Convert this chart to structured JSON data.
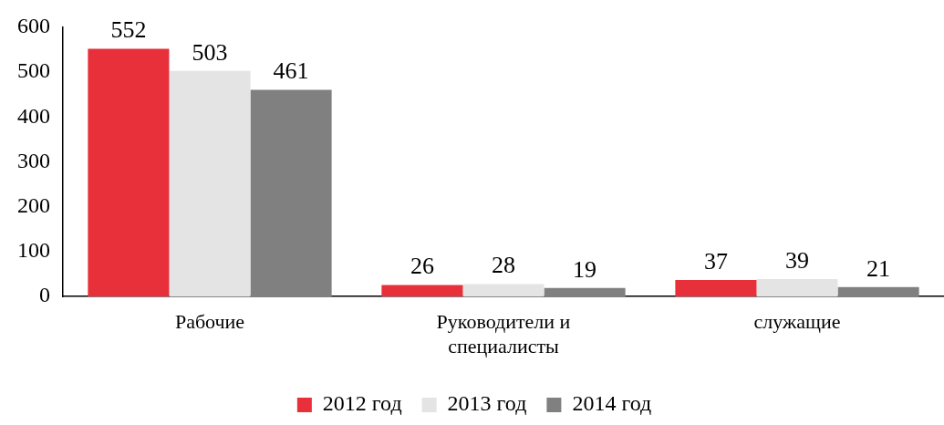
{
  "chart_data": {
    "type": "bar",
    "categories": [
      "Рабочие",
      "Руководители и специалисты",
      "служащие"
    ],
    "series": [
      {
        "name": "2012 год",
        "color": "#e8303a",
        "values": [
          552,
          26,
          37
        ]
      },
      {
        "name": "2013 год",
        "color": "#e4e4e4",
        "values": [
          503,
          28,
          39
        ]
      },
      {
        "name": "2014 год",
        "color": "#808080",
        "values": [
          461,
          19,
          21
        ]
      }
    ],
    "ylim": [
      0,
      600
    ],
    "yticks": [
      0,
      100,
      200,
      300,
      400,
      500,
      600
    ],
    "grid": false,
    "legend": "bottom",
    "data_labels": true
  }
}
